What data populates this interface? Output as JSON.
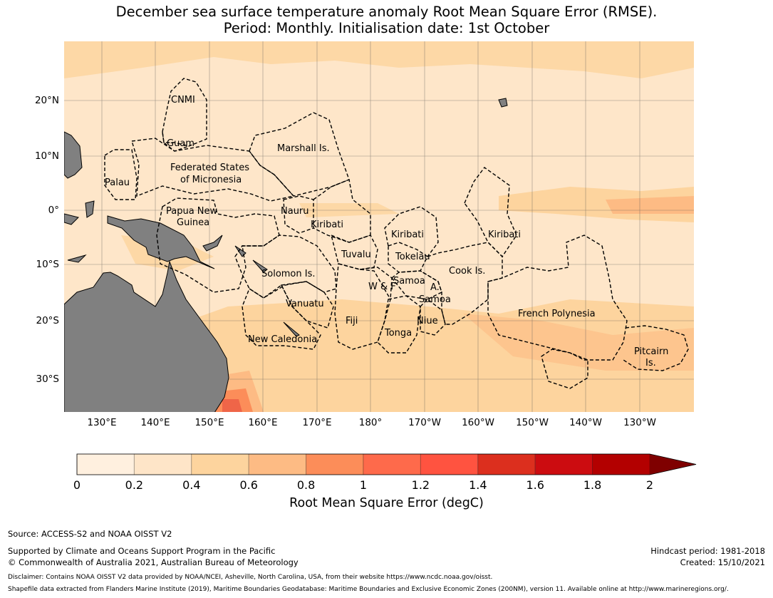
{
  "title": {
    "line1": "December sea surface temperature anomaly Root Mean Square Error (RMSE).",
    "line2": "Period: Monthly. Initialisation date: 1st October"
  },
  "map": {
    "lat_ticks": [
      "20°N",
      "10°N",
      "0°",
      "10°S",
      "20°S",
      "30°S"
    ],
    "lon_ticks": [
      "130°E",
      "140°E",
      "150°E",
      "160°E",
      "170°E",
      "180°",
      "170°W",
      "160°W",
      "150°W",
      "140°W",
      "130°W"
    ],
    "labels": {
      "cnmi": "CNMI",
      "guam": "Guam",
      "marshall": "Marshall Is.",
      "fsm1": "Federated States",
      "fsm2": "of Micronesia",
      "palau": "Palau",
      "png1": "Papua New",
      "png2": "Guinea",
      "nauru": "Nauru",
      "kiribati_w": "Kiribati",
      "kiribati_c": "Kiribati",
      "kiribati_e": "Kiribati",
      "tuvalu": "Tuvalu",
      "tokelau": "Tokelau",
      "solomon": "Solomon Is.",
      "cook": "Cook Is.",
      "samoa": "Samoa",
      "wf": "W & F",
      "as": "A.",
      "am_samoa": "Samoa",
      "vanuatu": "Vanuatu",
      "fiji": "Fiji",
      "niue": "Niue",
      "tonga": "Tonga",
      "french_polynesia": "French Polynesia",
      "new_caledonia": "New Caledonia",
      "pitcairn1": "Pitcairn",
      "pitcairn2": "Is."
    },
    "colors": {
      "land": "#808080",
      "ocean_low": "#fee6c9",
      "ocean_mid": "#fdd49e",
      "ocean_high": "#fdbb84"
    }
  },
  "colorbar": {
    "label": "Root Mean Square Error (degC)",
    "ticks": [
      "0",
      "0.2",
      "0.4",
      "0.6",
      "0.8",
      "1",
      "1.2",
      "1.4",
      "1.6",
      "1.8",
      "2"
    ],
    "colors": [
      "#fff0df",
      "#fee5c8",
      "#fdd49e",
      "#fdbb84",
      "#fc8d59",
      "#fe6a4b",
      "#ff5340",
      "#dc2f1e",
      "#cc0c10",
      "#b30000"
    ],
    "extend_color": "#7f0000"
  },
  "footer": {
    "source": "Source: ACCESS-S2 and NOAA OISST V2",
    "supported": "Supported by Climate and Oceans Support Program in the Pacific",
    "copyright": "© Commonwealth of Australia 2021, Australian Bureau of Meteorology",
    "hindcast": "Hindcast period: 1981-2018",
    "created": "Created: 15/10/2021",
    "disclaimer": "Disclaimer: Contains NOAA OISST V2 data provided by NOAA/NCEI, Asheville, North Carolina, USA, from their website https://www.ncdc.noaa.gov/oisst.",
    "shapefile": "Shapefile data extracted from Flanders Marine Institute (2019), Maritime Boundaries Geodatabase: Maritime Boundaries and Exclusive Economic Zones (200NM), version 11. Available online at http://www.marineregions.org/."
  }
}
